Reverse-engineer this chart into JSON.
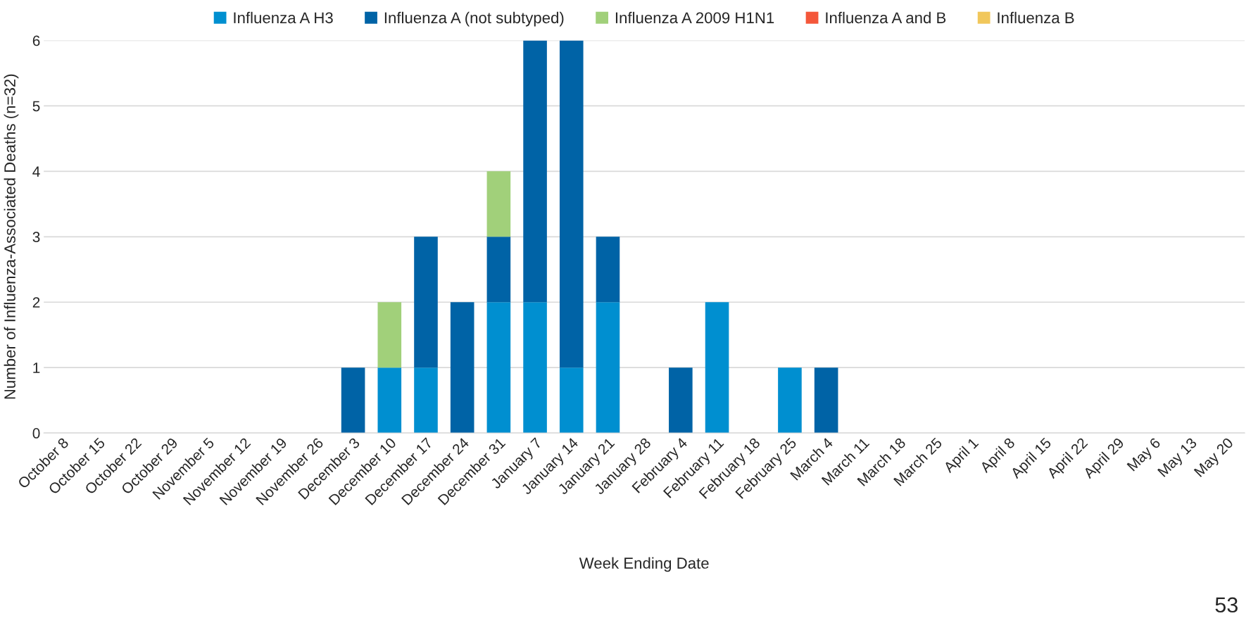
{
  "chart_data": {
    "type": "bar",
    "stacked": true,
    "xlabel": "Week Ending Date",
    "ylabel": "Number of Influenza-Associated Deaths (n=32)",
    "categories": [
      "October 8",
      "October 15",
      "October 22",
      "October 29",
      "November 5",
      "November 12",
      "November 19",
      "November 26",
      "December 3",
      "December 10",
      "December 17",
      "December 24",
      "December 31",
      "January 7",
      "January 14",
      "January 21",
      "January 28",
      "February 4",
      "February 11",
      "February 18",
      "February 25",
      "March 4",
      "March 11",
      "March 18",
      "March 25",
      "April 1",
      "April 8",
      "April 15",
      "April 22",
      "April 29",
      "May 6",
      "May 13",
      "May 20"
    ],
    "series": [
      {
        "name": "Influenza A H3",
        "color": "#008fd0",
        "values": [
          0,
          0,
          0,
          0,
          0,
          0,
          0,
          0,
          0,
          1,
          1,
          0,
          2,
          2,
          1,
          2,
          0,
          0,
          2,
          0,
          1,
          0,
          0,
          0,
          0,
          0,
          0,
          0,
          0,
          0,
          0,
          0,
          0
        ]
      },
      {
        "name": "Influenza A (not subtyped)",
        "color": "#0063a6",
        "values": [
          0,
          0,
          0,
          0,
          0,
          0,
          0,
          0,
          1,
          0,
          2,
          2,
          1,
          4,
          5,
          1,
          0,
          1,
          0,
          0,
          0,
          1,
          0,
          0,
          0,
          0,
          0,
          0,
          0,
          0,
          0,
          0,
          0
        ]
      },
      {
        "name": "Influenza A 2009 H1N1",
        "color": "#a1d07a",
        "values": [
          0,
          0,
          0,
          0,
          0,
          0,
          0,
          0,
          0,
          1,
          0,
          0,
          1,
          0,
          0,
          0,
          0,
          0,
          0,
          0,
          0,
          0,
          0,
          0,
          0,
          0,
          0,
          0,
          0,
          0,
          0,
          0,
          0
        ]
      },
      {
        "name": "Influenza A and B",
        "color": "#f4573a",
        "values": [
          0,
          0,
          0,
          0,
          0,
          0,
          0,
          0,
          0,
          0,
          0,
          0,
          0,
          0,
          0,
          0,
          0,
          0,
          0,
          0,
          0,
          0,
          0,
          0,
          0,
          0,
          0,
          0,
          0,
          0,
          0,
          0,
          0
        ]
      },
      {
        "name": "Influenza B",
        "color": "#f1c75b",
        "values": [
          0,
          0,
          0,
          0,
          0,
          0,
          0,
          0,
          0,
          0,
          0,
          0,
          0,
          0,
          0,
          0,
          0,
          0,
          0,
          0,
          0,
          0,
          0,
          0,
          0,
          0,
          0,
          0,
          0,
          0,
          0,
          0,
          0
        ]
      }
    ],
    "ylim": [
      0,
      6
    ],
    "yticks": [
      0,
      1,
      2,
      3,
      4,
      5,
      6
    ],
    "grid": "y",
    "legend": "top",
    "annotations": [
      "53"
    ]
  }
}
